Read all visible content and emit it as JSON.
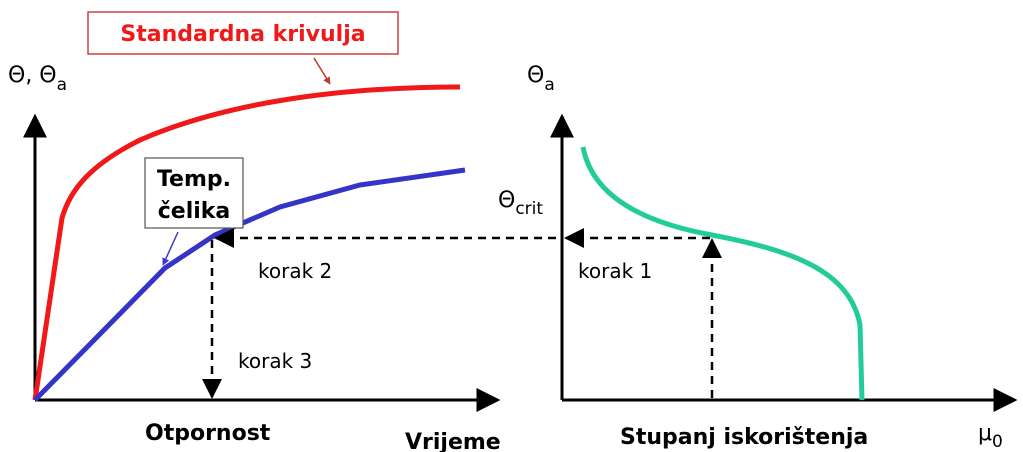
{
  "standard_curve_label": "Standardna krivulja",
  "left_axis_label": {
    "main": "Θ, Θ",
    "sub": "a"
  },
  "right_axis_label": {
    "main": "Θ",
    "sub": "a"
  },
  "critical_label": {
    "main": "Θ",
    "sub": "crit"
  },
  "steel_temp_label": [
    "Temp.",
    "čelika"
  ],
  "steps": [
    "korak 1",
    "korak 2",
    "korak 3"
  ],
  "left_x_labels": [
    "Otpornost",
    "Vrijeme"
  ],
  "right_x_labels": {
    "title": "Stupanj iskorištenja",
    "axis": {
      "main": "μ",
      "sub": "0"
    }
  }
}
